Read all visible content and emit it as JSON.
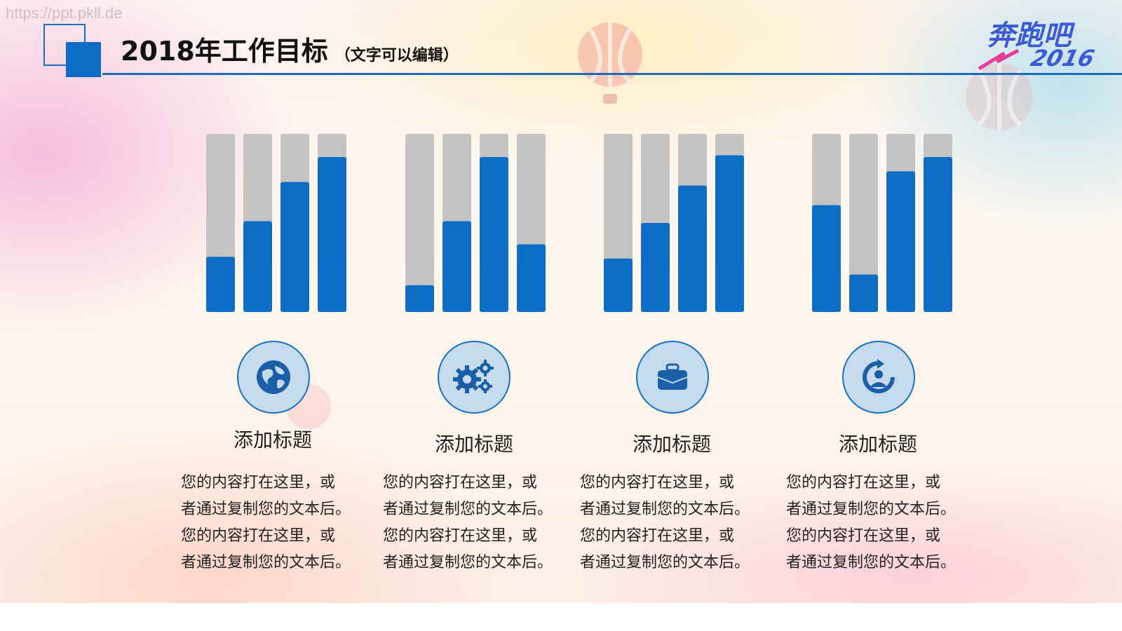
{
  "watermark": "https://ppt.pkll.de",
  "title": {
    "main": "2018年工作目标",
    "sub": "（文字可以编辑）"
  },
  "logo": {
    "text_top": "奔跑吧",
    "text_year": "2016"
  },
  "colors": {
    "accent": "#0d6cc6",
    "track": "#c4c4c4",
    "icon_bg": "#c7dbef",
    "title_line": "#1e6bb8"
  },
  "chart_data": {
    "type": "bar",
    "title": "",
    "ylim": [
      0,
      100
    ],
    "groups": [
      {
        "values": [
          31,
          51,
          73,
          87
        ]
      },
      {
        "values": [
          15,
          51,
          87,
          38
        ]
      },
      {
        "values": [
          30,
          50,
          71,
          88
        ]
      },
      {
        "values": [
          60,
          21,
          79,
          87
        ]
      }
    ]
  },
  "items": [
    {
      "icon": "globe-icon",
      "heading": "添加标题",
      "lines": [
        "您的内容打在这里，或",
        "者通过复制您的文本后。",
        "您的内容打在这里，或",
        "者通过复制您的文本后。"
      ]
    },
    {
      "icon": "gears-icon",
      "heading": "添加标题",
      "lines": [
        "您的内容打在这里，或",
        "者通过复制您的文本后。",
        "您的内容打在这里，或",
        "者通过复制您的文本后。"
      ]
    },
    {
      "icon": "briefcase-icon",
      "heading": "添加标题",
      "lines": [
        "您的内容打在这里，或",
        "者通过复制您的文本后。",
        "您的内容打在这里，或",
        "者通过复制您的文本后。"
      ]
    },
    {
      "icon": "user-refresh-icon",
      "heading": "添加标题",
      "lines": [
        "您的内容打在这里，或",
        "者通过复制您的文本后。",
        "您的内容打在这里，或",
        "者通过复制您的文本后。"
      ]
    }
  ]
}
